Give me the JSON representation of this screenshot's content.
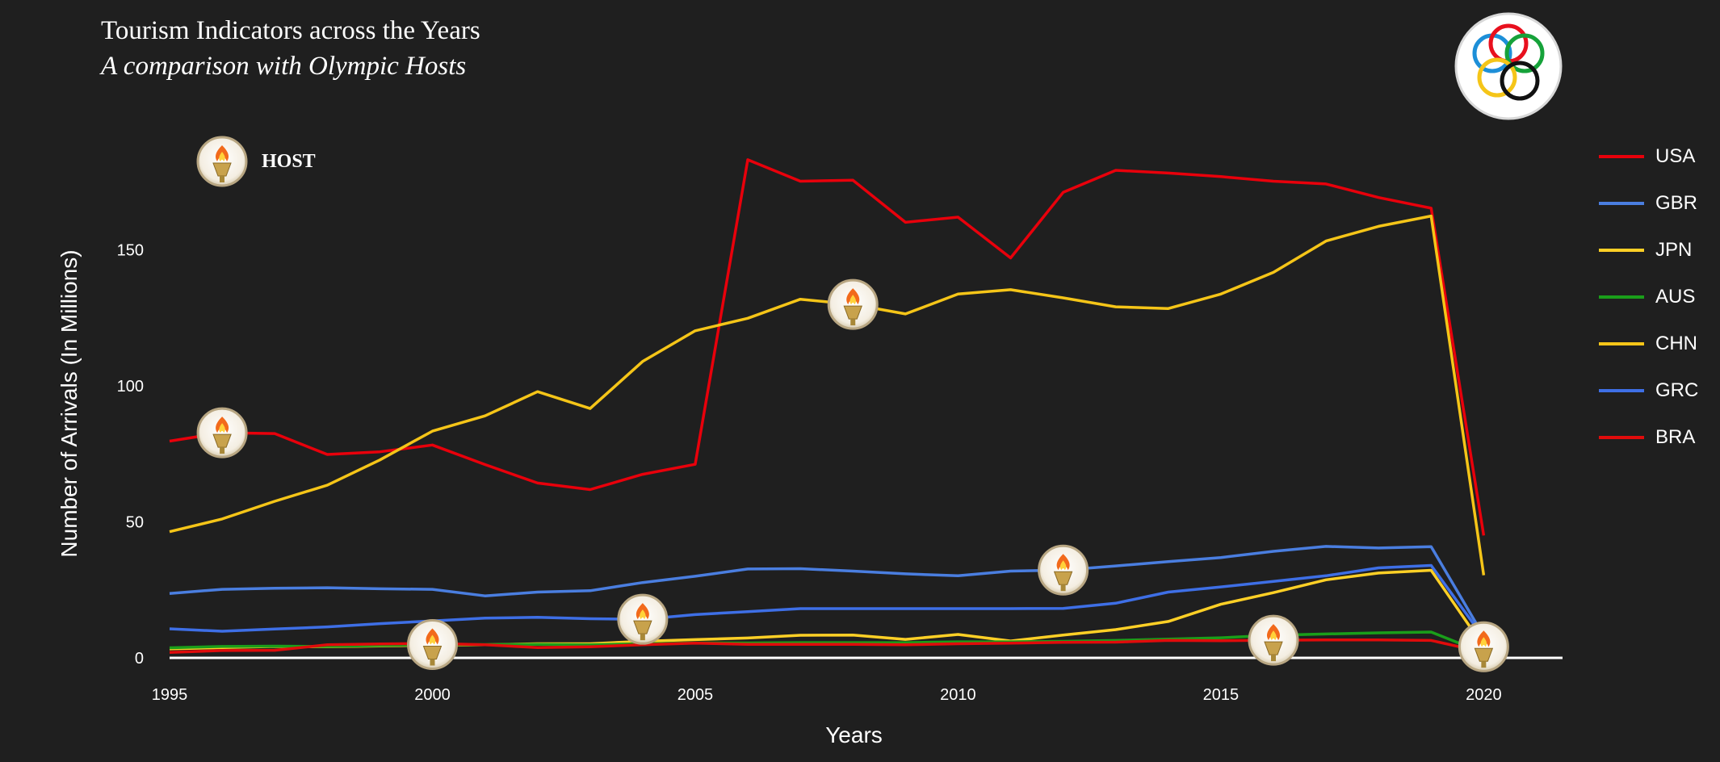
{
  "header": {
    "title": "Tourism Indicators across the Years",
    "subtitle": "A comparison with Olympic Hosts"
  },
  "host_key": {
    "label": "HOST",
    "icon": "torch-icon"
  },
  "logo": {
    "icon": "olympic-rings-icon"
  },
  "chart_data": {
    "type": "line",
    "title": "Tourism Indicators across the Years",
    "subtitle": "A comparison with Olympic Hosts",
    "xlabel": "Years",
    "ylabel": "Number of Arrivals (In Millions)",
    "xlim": [
      1995,
      2021.5
    ],
    "ylim": [
      0,
      190
    ],
    "x_ticks": [
      1995,
      2000,
      2005,
      2010,
      2015,
      2020
    ],
    "y_ticks": [
      0,
      50,
      100,
      150
    ],
    "legend_position": "right",
    "x": [
      1995,
      1996,
      1997,
      1998,
      1999,
      2000,
      2001,
      2002,
      2003,
      2004,
      2005,
      2006,
      2007,
      2008,
      2009,
      2010,
      2011,
      2012,
      2013,
      2014,
      2015,
      2016,
      2017,
      2018,
      2019,
      2020
    ],
    "series": [
      {
        "name": "USA",
        "color": "#e8000b",
        "values": [
          79.7,
          82.8,
          82.5,
          74.8,
          75.8,
          78.3,
          71.1,
          64.3,
          61.9,
          67.5,
          71.2,
          183.2,
          175.3,
          175.7,
          160.2,
          162.1,
          147.1,
          171.2,
          179.3,
          178.3,
          177.0,
          175.3,
          174.3,
          169.3,
          165.4,
          45.0
        ]
      },
      {
        "name": "GBR",
        "color": "#4a7ee0",
        "values": [
          23.7,
          25.2,
          25.6,
          25.8,
          25.4,
          25.2,
          22.8,
          24.2,
          24.7,
          27.7,
          30.0,
          32.7,
          32.8,
          31.9,
          30.9,
          30.2,
          31.9,
          32.3,
          33.8,
          35.4,
          36.9,
          39.2,
          41.0,
          40.4,
          40.9,
          8.0
        ]
      },
      {
        "name": "JPN",
        "color": "#ffd026",
        "values": [
          3.3,
          3.8,
          4.2,
          4.1,
          4.4,
          4.7,
          4.8,
          5.2,
          5.2,
          6.1,
          6.7,
          7.3,
          8.3,
          8.4,
          6.8,
          8.6,
          6.2,
          8.4,
          10.4,
          13.4,
          19.7,
          24.0,
          28.7,
          31.2,
          32.2,
          4.1
        ]
      },
      {
        "name": "AUS",
        "color": "#1a9e1a",
        "values": [
          3.7,
          4.2,
          4.3,
          4.2,
          4.5,
          4.9,
          4.9,
          5.0,
          4.8,
          5.2,
          5.5,
          5.5,
          5.6,
          5.6,
          5.6,
          5.9,
          5.9,
          6.1,
          6.4,
          6.9,
          7.4,
          8.3,
          8.8,
          9.2,
          9.5,
          1.8
        ]
      },
      {
        "name": "CHN",
        "color": "#f5c518",
        "values": [
          46.4,
          51.1,
          57.6,
          63.5,
          72.8,
          83.4,
          89.0,
          97.9,
          91.7,
          109.0,
          120.3,
          124.9,
          131.9,
          130.0,
          126.5,
          133.8,
          135.4,
          132.4,
          129.1,
          128.5,
          133.8,
          141.8,
          153.3,
          158.7,
          162.5,
          30.4
        ]
      },
      {
        "name": "GRC",
        "color": "#3e6fe6",
        "values": [
          10.7,
          9.8,
          10.6,
          11.4,
          12.6,
          13.6,
          14.6,
          14.9,
          14.4,
          14.2,
          15.9,
          17.0,
          18.1,
          18.1,
          18.1,
          18.1,
          18.1,
          18.2,
          20.1,
          24.2,
          26.1,
          28.1,
          30.2,
          33.1,
          34.0,
          7.4
        ]
      },
      {
        "name": "BRA",
        "color": "#e00b0b",
        "values": [
          2.0,
          2.7,
          2.8,
          4.8,
          5.1,
          5.3,
          4.8,
          3.8,
          4.1,
          4.8,
          5.4,
          5.0,
          5.0,
          5.0,
          4.8,
          5.2,
          5.4,
          5.7,
          5.8,
          6.4,
          6.3,
          6.5,
          6.6,
          6.6,
          6.4,
          2.1
        ]
      }
    ],
    "host_markers": [
      {
        "year": 1996,
        "country": "USA",
        "value": 82.8
      },
      {
        "year": 2000,
        "country": "AUS",
        "value": 4.9
      },
      {
        "year": 2004,
        "country": "GRC",
        "value": 14.2
      },
      {
        "year": 2008,
        "country": "CHN",
        "value": 130.0
      },
      {
        "year": 2012,
        "country": "GBR",
        "value": 32.3
      },
      {
        "year": 2016,
        "country": "BRA",
        "value": 6.5
      },
      {
        "year": 2020,
        "country": "JPN",
        "value": 4.1
      }
    ]
  }
}
